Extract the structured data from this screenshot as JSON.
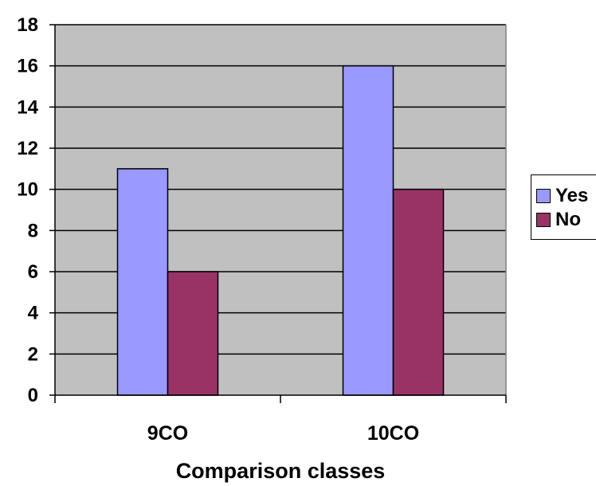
{
  "chart_data": {
    "type": "bar",
    "categories": [
      "9CO",
      "10CO"
    ],
    "series": [
      {
        "name": "Yes",
        "values": [
          11,
          16
        ],
        "color": "#9999ff"
      },
      {
        "name": "No",
        "values": [
          6,
          10
        ],
        "color": "#993366"
      }
    ],
    "title": "",
    "xlabel": "Comparison classes",
    "ylabel": "",
    "ylim": [
      0,
      18
    ],
    "yticks": [
      0,
      2,
      4,
      6,
      8,
      10,
      12,
      14,
      16,
      18
    ],
    "grid": true,
    "plot_background": "#c0c0c0",
    "legend_position": "right"
  }
}
